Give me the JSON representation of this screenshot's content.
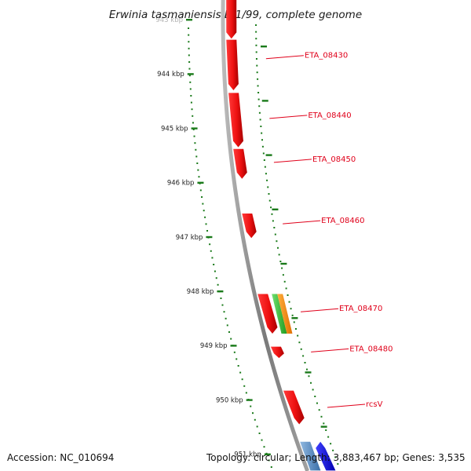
{
  "title": "Erwinia tasmaniensis Et1/99, complete genome",
  "footer": {
    "accession": "Accession: NC_010694",
    "summary": "Topology: circular; Length: 3,883,467 bp; Genes: 3,535"
  },
  "colors": {
    "gene": "#ee1111",
    "gene_shade": "#a80000",
    "rna_green": "#33bb33",
    "rna_orange": "#ff8c00",
    "dark_blue": "#1010dd",
    "steel_blue": "#4f86c6",
    "tick": "#1a7a1a",
    "backbone": "#8a8a8a",
    "label": "#e0001a"
  },
  "ticks": [
    {
      "label": "943 kbp",
      "kbp": 943
    },
    {
      "label": "944 kbp",
      "kbp": 944
    },
    {
      "label": "945 kbp",
      "kbp": 945
    },
    {
      "label": "946 kbp",
      "kbp": 946
    },
    {
      "label": "947 kbp",
      "kbp": 947
    },
    {
      "label": "948 kbp",
      "kbp": 948
    },
    {
      "label": "949 kbp",
      "kbp": 949
    },
    {
      "label": "950 kbp",
      "kbp": 950
    },
    {
      "label": "951 kbp",
      "kbp": 951
    }
  ],
  "genes": [
    {
      "start_kbp": 942.6,
      "end_kbp": 943.35,
      "type": "gene",
      "dir": "down"
    },
    {
      "start_kbp": 943.37,
      "end_kbp": 944.3,
      "type": "gene",
      "dir": "down"
    },
    {
      "start_kbp": 944.35,
      "end_kbp": 945.35,
      "type": "gene",
      "dir": "down"
    },
    {
      "start_kbp": 945.38,
      "end_kbp": 945.93,
      "type": "gene",
      "dir": "down"
    },
    {
      "start_kbp": 946.57,
      "end_kbp": 947.02,
      "type": "gene",
      "dir": "down"
    },
    {
      "start_kbp": 948.05,
      "end_kbp": 948.78,
      "type": "gene",
      "dir": "down"
    },
    {
      "start_kbp": 948.05,
      "end_kbp": 948.78,
      "type": "rna_green",
      "dir": "none"
    },
    {
      "start_kbp": 948.05,
      "end_kbp": 948.78,
      "type": "rna_orange",
      "dir": "none"
    },
    {
      "start_kbp": 949.02,
      "end_kbp": 949.23,
      "type": "gene",
      "dir": "down"
    },
    {
      "start_kbp": 949.83,
      "end_kbp": 950.45,
      "type": "gene",
      "dir": "down"
    },
    {
      "start_kbp": 950.77,
      "end_kbp": 951.3,
      "type": "steel_blue",
      "dir": "none"
    },
    {
      "start_kbp": 950.77,
      "end_kbp": 951.3,
      "type": "dark_blue",
      "dir": "up"
    }
  ],
  "gene_labels": [
    {
      "text": "ETA_08430",
      "kbp": 943.69
    },
    {
      "text": "ETA_08440",
      "kbp": 944.79
    },
    {
      "text": "ETA_08450",
      "kbp": 945.6
    },
    {
      "text": "ETA_08460",
      "kbp": 946.73
    },
    {
      "text": "ETA_08470",
      "kbp": 948.35
    },
    {
      "text": "ETA_08480",
      "kbp": 949.09
    },
    {
      "text": "rcsV",
      "kbp": 950.11
    }
  ]
}
